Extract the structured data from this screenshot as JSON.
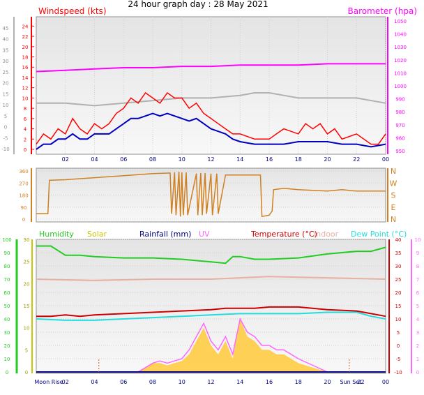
{
  "title": "24 hour graph day : 28 May 2021",
  "colors": {
    "wind": "#ff0000",
    "gust_grey": "#b0b0b0",
    "avg_wind": "#0000c0",
    "barometer": "#ff00ff",
    "direction": "#d08020",
    "humidity": "#22cc22",
    "solar": "#c8c800",
    "rainfall": "#000080",
    "uv": "#ff66ff",
    "temperature": "#cc0000",
    "indoor": "#e8b0a0",
    "dew_point": "#22dddd",
    "solar_fill": "#ffcc44",
    "plot_bg": "#e8e8e8"
  },
  "chart_data": [
    {
      "type": "line",
      "panel": "wind-barometer",
      "left_axis_label": "Windspeed (kts)",
      "right_axis_label": "Barometer (hpa)",
      "left_ticks": [
        "24",
        "22",
        "20",
        "18",
        "16",
        "14",
        "12",
        "10",
        "8",
        "6",
        "4",
        "2",
        "0"
      ],
      "left_outer_ticks": [
        "45",
        "40",
        "35",
        "30",
        "25",
        "20",
        "15",
        "10",
        "5",
        "0",
        "-5",
        "-10"
      ],
      "right_ticks": [
        "1050",
        "1040",
        "1030",
        "1020",
        "1010",
        "1000",
        "990",
        "980",
        "970",
        "960",
        "950"
      ],
      "left_ylim": [
        0,
        25
      ],
      "right_ylim": [
        950,
        1050
      ],
      "x_ticks": [
        "02",
        "04",
        "06",
        "08",
        "10",
        "12",
        "14",
        "16",
        "18",
        "20",
        "22",
        "00"
      ],
      "x_hours": [
        2,
        4,
        6,
        8,
        10,
        12,
        14,
        16,
        18,
        20,
        22,
        24
      ],
      "xlim": [
        0,
        24
      ],
      "series": [
        {
          "key": "barometer",
          "axis": "right",
          "x": [
            0,
            2,
            4,
            6,
            8,
            10,
            12,
            14,
            16,
            18,
            20,
            22,
            24
          ],
          "values": [
            1011,
            1012,
            1013,
            1014,
            1014,
            1015,
            1015,
            1016,
            1016,
            1016,
            1017,
            1017,
            1017
          ]
        },
        {
          "key": "gust_grey",
          "axis": "left",
          "x": [
            0,
            2,
            4,
            6,
            8,
            10,
            12,
            14,
            15,
            16,
            17,
            18,
            20,
            22,
            24
          ],
          "values": [
            9,
            9,
            8.5,
            9,
            9.5,
            10,
            10,
            10.5,
            11,
            11,
            10.5,
            10,
            10,
            10,
            9
          ]
        },
        {
          "key": "wind",
          "axis": "left",
          "x": [
            0,
            0.5,
            1,
            1.5,
            2,
            2.5,
            3,
            3.5,
            4,
            4.5,
            5,
            5.5,
            6,
            6.5,
            7,
            7.5,
            8,
            8.5,
            9,
            9.5,
            10,
            10.5,
            11,
            11.5,
            12,
            12.5,
            13,
            13.5,
            14,
            15,
            16,
            16.5,
            17,
            18,
            18.5,
            19,
            19.5,
            20,
            20.5,
            21,
            22,
            23,
            23.5,
            24
          ],
          "values": [
            1,
            3,
            2,
            4,
            3,
            6,
            4,
            3,
            5,
            4,
            5,
            7,
            8,
            10,
            9,
            11,
            10,
            9,
            11,
            10,
            10,
            8,
            9,
            7,
            6,
            5,
            4,
            3,
            3,
            2,
            2,
            3,
            4,
            3,
            5,
            4,
            5,
            3,
            4,
            2,
            3,
            1,
            1,
            3
          ]
        },
        {
          "key": "avg_wind",
          "axis": "left",
          "x": [
            0,
            0.5,
            1,
            1.5,
            2,
            2.5,
            3,
            3.5,
            4,
            4.5,
            5,
            5.5,
            6,
            6.5,
            7,
            7.5,
            8,
            8.5,
            9,
            9.5,
            10,
            10.5,
            11,
            11.5,
            12,
            12.5,
            13,
            13.5,
            14,
            15,
            16,
            17,
            18,
            19,
            20,
            21,
            22,
            23,
            24
          ],
          "values": [
            0,
            1,
            1,
            2,
            2,
            3,
            2,
            2,
            3,
            3,
            3,
            4,
            5,
            6,
            6,
            6.5,
            7,
            6.5,
            7,
            6.5,
            6,
            5.5,
            6,
            5,
            4,
            3.5,
            3,
            2,
            1.5,
            1,
            1,
            1,
            1.5,
            1.5,
            1.5,
            1,
            1,
            0.5,
            1
          ]
        }
      ]
    },
    {
      "type": "line",
      "panel": "wind-direction",
      "left_ticks": [
        "360",
        "270",
        "180",
        "90",
        "0"
      ],
      "right_ticks": [
        "N",
        "W",
        "S",
        "E",
        "N"
      ],
      "ylim": [
        0,
        360
      ],
      "xlim": [
        0,
        24
      ],
      "series": [
        {
          "key": "direction",
          "x": [
            0,
            0.8,
            0.9,
            2,
            4,
            6,
            8,
            9.2,
            9.3,
            9.5,
            9.6,
            9.8,
            9.9,
            10,
            10.1,
            10.3,
            10.4,
            11,
            11.1,
            11.3,
            11.4,
            11.6,
            11.7,
            12,
            12.1,
            12.4,
            12.5,
            13,
            13.2,
            13.5,
            14,
            15,
            15.4,
            15.5,
            16,
            16.2,
            16.3,
            17,
            18,
            20,
            21,
            22,
            24
          ],
          "values": [
            40,
            40,
            290,
            295,
            310,
            325,
            340,
            345,
            40,
            350,
            30,
            355,
            20,
            350,
            30,
            350,
            30,
            340,
            30,
            345,
            30,
            345,
            40,
            340,
            30,
            340,
            40,
            330,
            330,
            330,
            330,
            330,
            330,
            20,
            30,
            60,
            220,
            230,
            220,
            210,
            220,
            210,
            210
          ]
        }
      ]
    },
    {
      "type": "area",
      "panel": "humidity-temperature",
      "legend": [
        "Humidity",
        "Solar",
        "Rainfall (mm)",
        "UV",
        "Temperature (°C)",
        "Indoor",
        "Dew Point (°C)"
      ],
      "humidity_ticks": [
        "100",
        "90",
        "80",
        "70",
        "60",
        "50",
        "40",
        "30",
        "20",
        "10",
        "0"
      ],
      "solar_ticks": [
        "30",
        "25",
        "20",
        "15",
        "10",
        "5",
        "0"
      ],
      "temp_ticks": [
        "40",
        "35",
        "30",
        "25",
        "20",
        "15",
        "10",
        "5",
        "0",
        "-5",
        "-10"
      ],
      "uv_ticks": [
        "10",
        "9",
        "8",
        "7",
        "6",
        "5",
        "4",
        "3",
        "2",
        "1",
        "0"
      ],
      "x_ticks": [
        "Moon Rise",
        "02",
        "04",
        "06",
        "08",
        "10",
        "12",
        "14",
        "16",
        "18",
        "20",
        "Sun Set",
        "22",
        "00"
      ],
      "xlim": [
        0,
        24
      ],
      "series": [
        {
          "key": "humidity",
          "axis": "humidity",
          "x": [
            0,
            1,
            2,
            3,
            4,
            6,
            8,
            10,
            11,
            12,
            13,
            13.5,
            14,
            15,
            16,
            18,
            20,
            22,
            23,
            24
          ],
          "values": [
            95,
            95,
            88,
            88,
            87,
            86,
            86,
            85,
            84,
            83,
            82,
            87,
            87,
            85,
            85,
            86,
            89,
            91,
            91,
            94
          ]
        },
        {
          "key": "indoor",
          "axis": "temp",
          "x": [
            0,
            4,
            8,
            12,
            16,
            20,
            24
          ],
          "values": [
            25,
            24.5,
            25,
            25,
            26,
            25.5,
            25
          ]
        },
        {
          "key": "temperature",
          "axis": "temp",
          "x": [
            0,
            1,
            2,
            3,
            4,
            6,
            8,
            10,
            12,
            13,
            14,
            15,
            16,
            18,
            20,
            22,
            23,
            24
          ],
          "values": [
            11,
            11,
            11.5,
            11,
            11.5,
            12,
            12.5,
            13,
            13.5,
            14,
            14,
            14,
            14.5,
            14.5,
            13.5,
            13,
            12,
            11
          ]
        },
        {
          "key": "dew_point",
          "axis": "temp",
          "x": [
            0,
            2,
            4,
            6,
            8,
            10,
            12,
            14,
            16,
            18,
            20,
            22,
            23,
            24
          ],
          "values": [
            10,
            9.5,
            9.5,
            10,
            10.5,
            11,
            11.5,
            12,
            12,
            12,
            12.5,
            12.5,
            11,
            10
          ]
        },
        {
          "key": "solar",
          "axis": "solar",
          "x": [
            0,
            7,
            7.5,
            8,
            8.5,
            9,
            9.5,
            10,
            10.5,
            11,
            11.5,
            12,
            12.5,
            13,
            13.5,
            14,
            14.5,
            15,
            15.5,
            16,
            16.5,
            17,
            18,
            19,
            20,
            24
          ],
          "values": [
            0,
            0,
            1,
            2,
            2,
            1.5,
            2,
            2.5,
            4,
            7,
            10,
            6,
            4,
            7,
            3,
            12,
            8,
            7,
            5,
            5,
            4,
            4,
            2,
            1,
            0,
            0
          ]
        },
        {
          "key": "uv",
          "axis": "solar",
          "x": [
            0,
            7,
            7.5,
            8,
            8.5,
            9,
            9.5,
            10,
            10.5,
            11,
            11.5,
            12,
            12.5,
            13,
            13.5,
            14,
            14.5,
            15,
            15.5,
            16,
            16.5,
            17,
            18,
            19,
            20,
            24
          ],
          "values": [
            0,
            0,
            1,
            2,
            2.5,
            2,
            2.5,
            3,
            5,
            8,
            11,
            7,
            5,
            8,
            4,
            12,
            9,
            8,
            6,
            6,
            5,
            5,
            3,
            1.5,
            0,
            0
          ]
        },
        {
          "key": "rainfall",
          "axis": "solar",
          "x": [
            0,
            24
          ],
          "values": [
            0,
            0
          ]
        }
      ]
    }
  ]
}
